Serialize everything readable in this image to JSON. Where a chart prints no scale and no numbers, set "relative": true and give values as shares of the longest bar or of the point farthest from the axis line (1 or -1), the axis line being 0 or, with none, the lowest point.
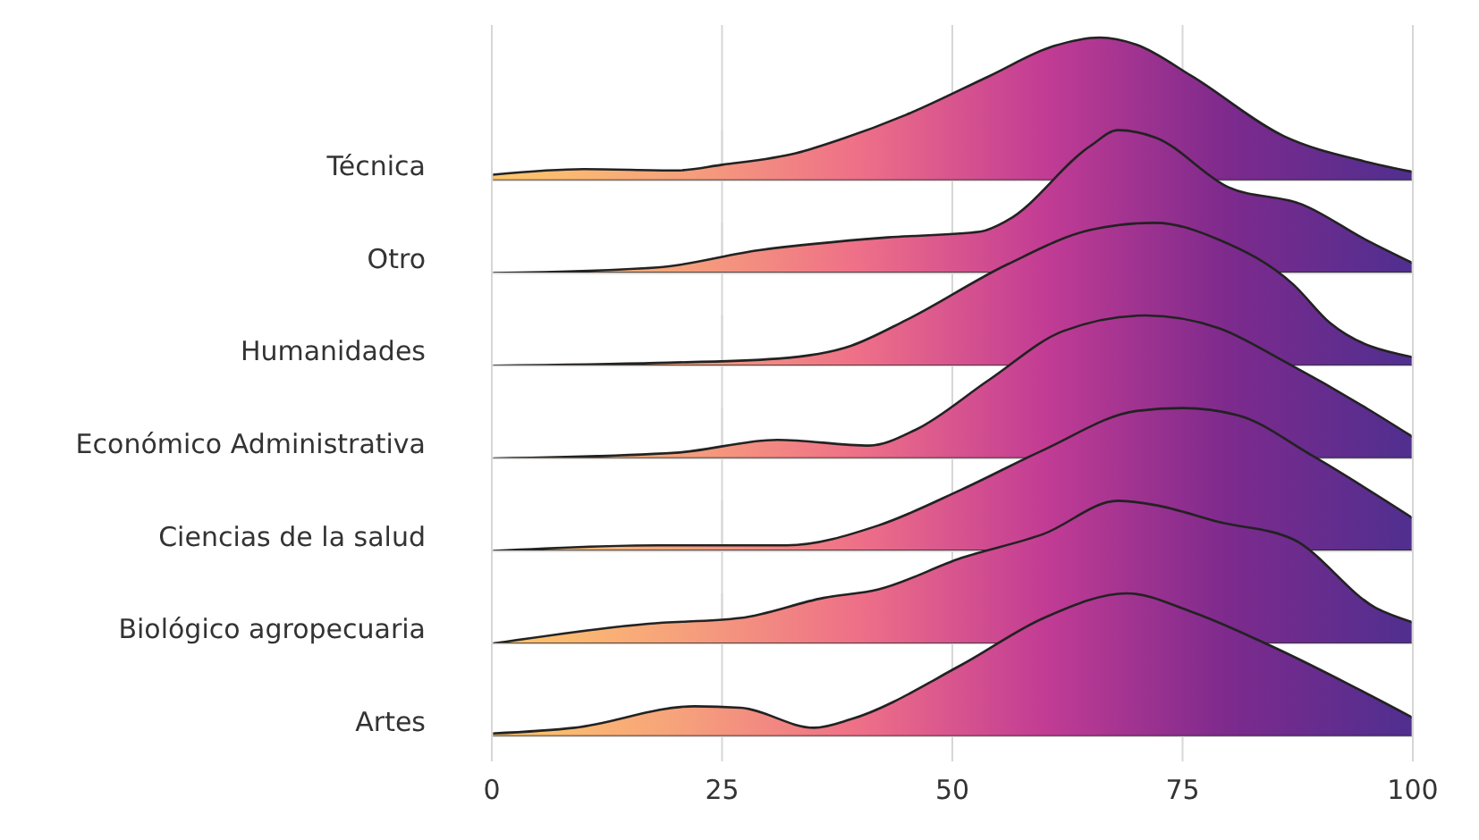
{
  "chart_data": [
    {
      "type": "area",
      "relative": true,
      "xlim": [
        0,
        100
      ],
      "xticks": [
        0,
        25,
        50,
        75,
        100
      ],
      "grid": true,
      "tick_labels": false,
      "colors": [
        "#fec86b",
        "#f6a27b",
        "#ee6f88",
        "#c23c94",
        "#7d2a8d",
        "#4f2f8f"
      ],
      "series": [
        {
          "name": "Técnica",
          "x": [
            0,
            10,
            20,
            25,
            33,
            38,
            45,
            54,
            61,
            66,
            70,
            76,
            86,
            95,
            100
          ],
          "values": [
            0.04,
            0.08,
            0.07,
            0.11,
            0.19,
            0.29,
            0.46,
            0.73,
            0.94,
            1,
            0.95,
            0.73,
            0.31,
            0.13,
            0.06
          ]
        }
      ]
    },
    {
      "type": "area",
      "relative": true,
      "xlim": [
        0,
        100
      ],
      "xticks": [
        0,
        25,
        50,
        75,
        100
      ],
      "grid": true,
      "tick_labels": false,
      "colors": [
        "#fec86b",
        "#f6a27b",
        "#ee6f88",
        "#c23c94",
        "#7d2a8d",
        "#4f2f8f"
      ],
      "series": [
        {
          "name": "Otro",
          "x": [
            0,
            18,
            29,
            43,
            53,
            56,
            65,
            68,
            72,
            80,
            88,
            95,
            100
          ],
          "values": [
            0,
            0.04,
            0.16,
            0.25,
            0.29,
            0.37,
            0.89,
            1,
            0.95,
            0.6,
            0.48,
            0.23,
            0.07
          ]
        }
      ]
    },
    {
      "type": "area",
      "relative": true,
      "xlim": [
        0,
        100
      ],
      "xticks": [
        0,
        25,
        50,
        75,
        100
      ],
      "grid": true,
      "tick_labels": false,
      "colors": [
        "#fec86b",
        "#f6a27b",
        "#ee6f88",
        "#c23c94",
        "#7d2a8d",
        "#4f2f8f"
      ],
      "series": [
        {
          "name": "Humanidades",
          "x": [
            0,
            18,
            31,
            39,
            45,
            56,
            65,
            72,
            79,
            87,
            91,
            100
          ],
          "values": [
            0,
            0.02,
            0.05,
            0.14,
            0.32,
            0.71,
            0.95,
            1,
            0.88,
            0.57,
            0.3,
            0.06
          ]
        }
      ]
    },
    {
      "type": "area",
      "relative": true,
      "xlim": [
        0,
        100
      ],
      "xticks": [
        0,
        25,
        50,
        75,
        100
      ],
      "grid": true,
      "tick_labels": false,
      "colors": [
        "#fec86b",
        "#f6a27b",
        "#ee6f88",
        "#c23c94",
        "#7d2a8d",
        "#4f2f8f"
      ],
      "series": [
        {
          "name": "Económico Administrativa",
          "x": [
            0,
            20,
            31,
            41,
            46,
            54,
            62,
            71,
            79,
            86,
            95,
            100
          ],
          "values": [
            0,
            0.04,
            0.13,
            0.09,
            0.2,
            0.55,
            0.89,
            1,
            0.91,
            0.68,
            0.35,
            0.15
          ]
        }
      ]
    },
    {
      "type": "area",
      "relative": true,
      "xlim": [
        0,
        100
      ],
      "xticks": [
        0,
        25,
        50,
        75,
        100
      ],
      "grid": true,
      "tick_labels": false,
      "colors": [
        "#fec86b",
        "#f6a27b",
        "#ee6f88",
        "#c23c94",
        "#7d2a8d",
        "#4f2f8f"
      ],
      "series": [
        {
          "name": "Ciencias de la salud",
          "x": [
            0,
            18,
            32,
            42,
            51,
            60,
            70,
            75,
            81,
            89,
            100
          ],
          "values": [
            0,
            0.04,
            0.04,
            0.18,
            0.43,
            0.71,
            0.98,
            1,
            0.95,
            0.67,
            0.23
          ]
        }
      ]
    },
    {
      "type": "area",
      "relative": true,
      "xlim": [
        0,
        100
      ],
      "xticks": [
        0,
        25,
        50,
        75,
        100
      ],
      "grid": true,
      "tick_labels": false,
      "colors": [
        "#fec86b",
        "#f6a27b",
        "#ee6f88",
        "#c23c94",
        "#7d2a8d",
        "#4f2f8f"
      ],
      "series": [
        {
          "name": "Biológico agropecuaria",
          "x": [
            0,
            17,
            27,
            36,
            42,
            51,
            60,
            68,
            72,
            79,
            87,
            96,
            100
          ],
          "values": [
            0,
            0.14,
            0.18,
            0.32,
            0.38,
            0.6,
            0.77,
            1,
            0.97,
            0.85,
            0.73,
            0.25,
            0.15
          ]
        }
      ]
    },
    {
      "type": "area",
      "relative": true,
      "xlim": [
        0,
        100
      ],
      "xticks": [
        0,
        25,
        50,
        75,
        100
      ],
      "grid": true,
      "tick_labels": "x",
      "colors": [
        "#fec86b",
        "#f6a27b",
        "#ee6f88",
        "#c23c94",
        "#7d2a8d",
        "#4f2f8f"
      ],
      "series": [
        {
          "name": "Artes",
          "x": [
            0,
            9,
            22,
            27,
            35,
            39,
            51,
            60,
            69,
            76,
            84,
            100
          ],
          "values": [
            0.02,
            0.06,
            0.21,
            0.2,
            0.06,
            0.12,
            0.5,
            0.83,
            1,
            0.87,
            0.65,
            0.13
          ]
        }
      ]
    }
  ]
}
